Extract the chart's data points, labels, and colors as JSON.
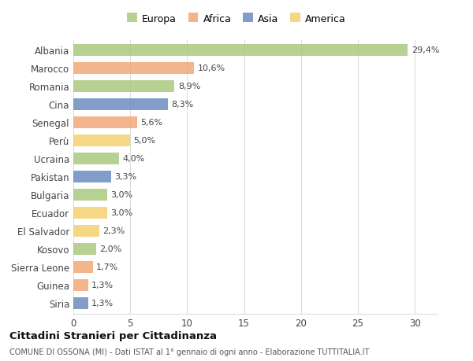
{
  "countries": [
    "Albania",
    "Marocco",
    "Romania",
    "Cina",
    "Senegal",
    "Perù",
    "Ucraina",
    "Pakistan",
    "Bulgaria",
    "Ecuador",
    "El Salvador",
    "Kosovo",
    "Sierra Leone",
    "Guinea",
    "Siria"
  ],
  "values": [
    29.4,
    10.6,
    8.9,
    8.3,
    5.6,
    5.0,
    4.0,
    3.3,
    3.0,
    3.0,
    2.3,
    2.0,
    1.7,
    1.3,
    1.3
  ],
  "labels": [
    "29,4%",
    "10,6%",
    "8,9%",
    "8,3%",
    "5,6%",
    "5,0%",
    "4,0%",
    "3,3%",
    "3,0%",
    "3,0%",
    "2,3%",
    "2,0%",
    "1,7%",
    "1,3%",
    "1,3%"
  ],
  "continents": [
    "Europa",
    "Africa",
    "Europa",
    "Asia",
    "Africa",
    "America",
    "Europa",
    "Asia",
    "Europa",
    "America",
    "America",
    "Europa",
    "Africa",
    "Africa",
    "Asia"
  ],
  "colors": {
    "Europa": "#aac97e",
    "Africa": "#f0a878",
    "Asia": "#6b8cbf",
    "America": "#f5d06e"
  },
  "title": "Cittadini Stranieri per Cittadinanza",
  "subtitle": "COMUNE DI OSSONA (MI) - Dati ISTAT al 1° gennaio di ogni anno - Elaborazione TUTTITALIA.IT",
  "xlim": [
    0,
    32
  ],
  "xticks": [
    0,
    5,
    10,
    15,
    20,
    25,
    30
  ],
  "background_color": "#ffffff",
  "grid_color": "#dddddd"
}
